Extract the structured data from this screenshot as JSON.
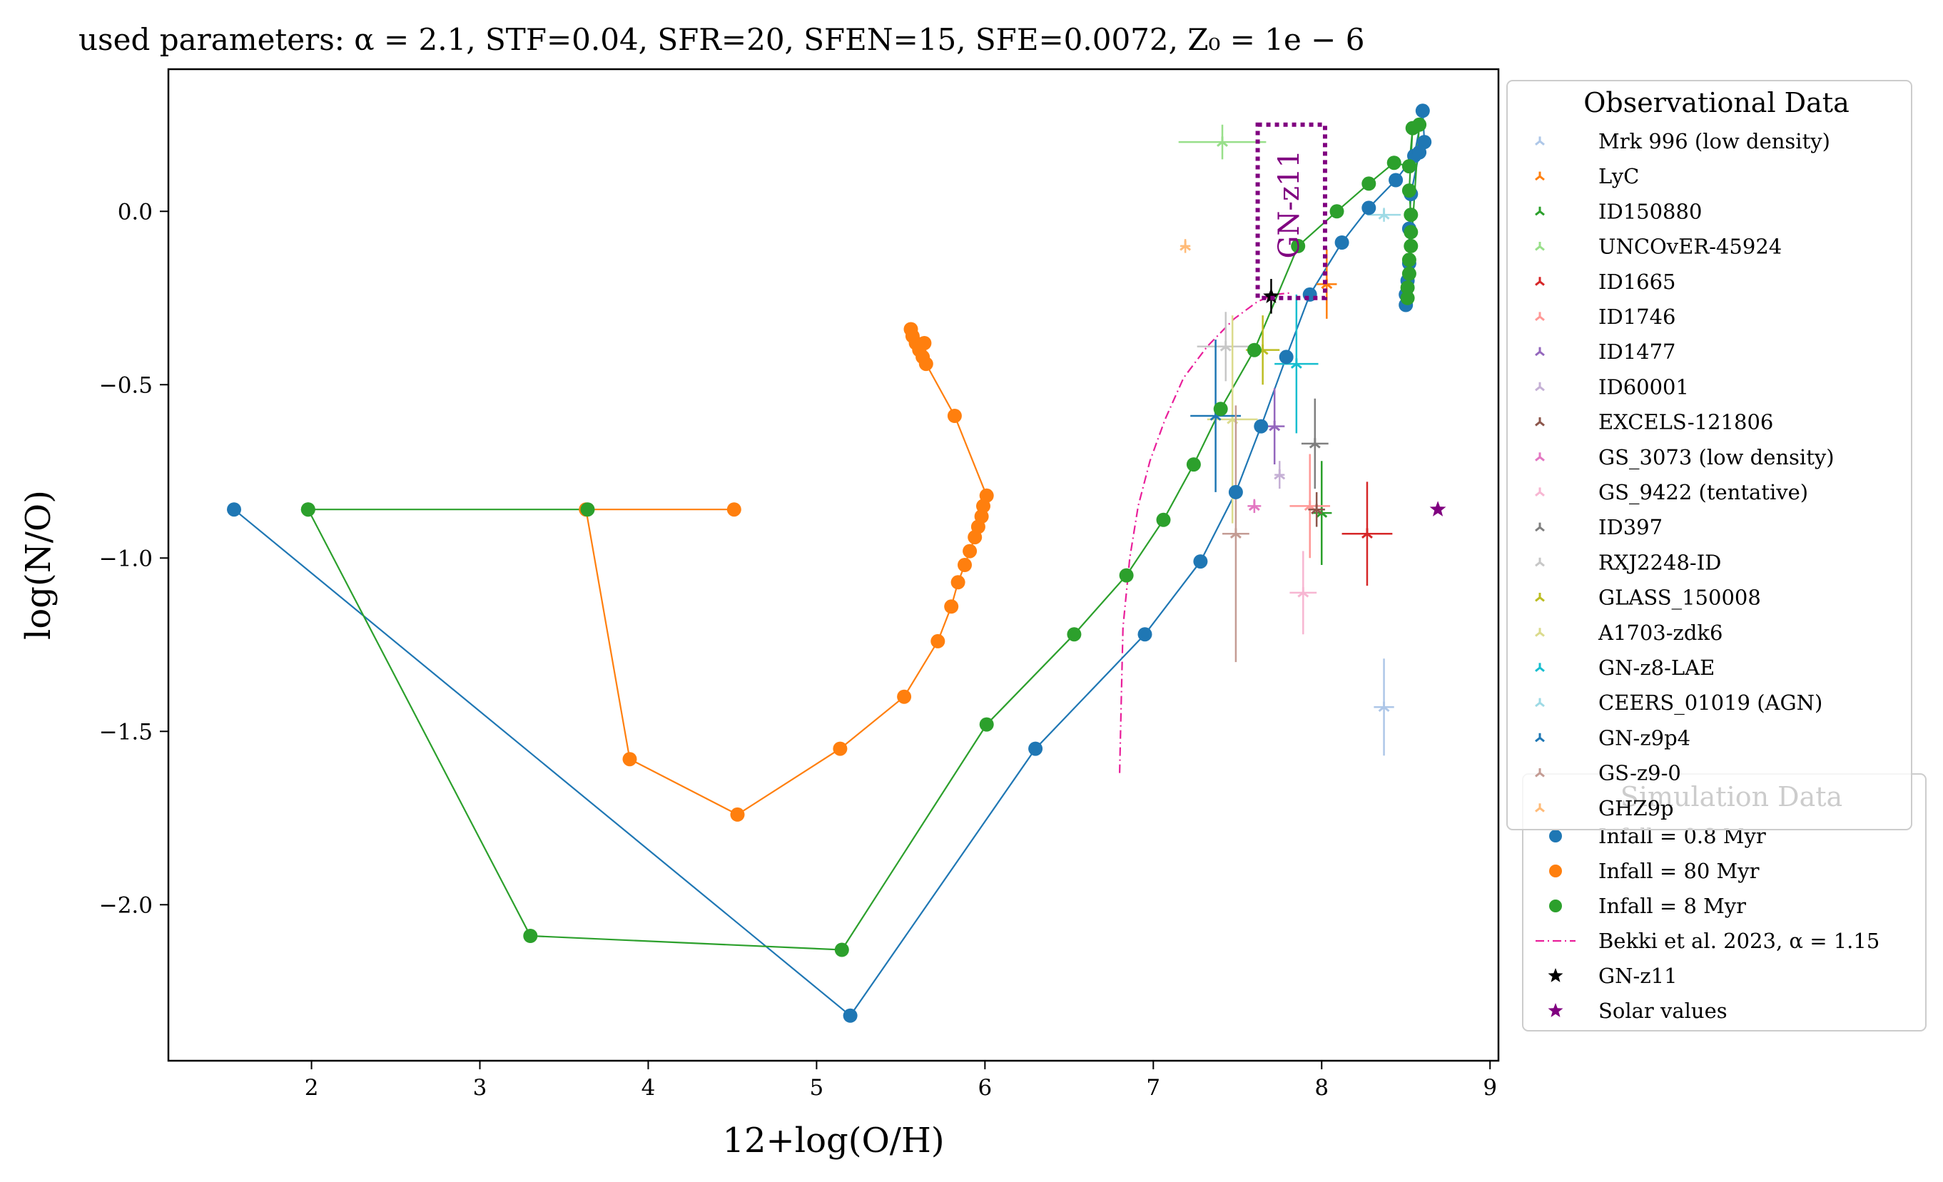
{
  "chart_data": {
    "type": "scatter",
    "title": "used parameters: α = 2.1, STF=0.04, SFR=20, SFEN=15, SFE=0.0072, Z₀ = 1e − 6",
    "xlabel": "12+log(O/H)",
    "ylabel": "log(N/O)",
    "xlim": [
      1.15,
      9.05
    ],
    "ylim": [
      -2.45,
      0.41
    ],
    "xticks": [
      {
        "value": 2,
        "label": "2"
      },
      {
        "value": 3,
        "label": "3"
      },
      {
        "value": 4,
        "label": "4"
      },
      {
        "value": 5,
        "label": "5"
      },
      {
        "value": 6,
        "label": "6"
      },
      {
        "value": 7,
        "label": "7"
      },
      {
        "value": 8,
        "label": "8"
      },
      {
        "value": 9,
        "label": "9"
      }
    ],
    "yticks": [
      {
        "value": 0.0,
        "label": "0.0"
      },
      {
        "value": -0.5,
        "label": "−0.5"
      },
      {
        "value": -1.0,
        "label": "−1.0"
      },
      {
        "value": -1.5,
        "label": "−1.5"
      },
      {
        "value": -2.0,
        "label": "−2.0"
      }
    ],
    "grid": false,
    "simulation_series": [
      {
        "name": "Infall = 0.8 Myr",
        "color": "#1f77b4",
        "points": [
          [
            1.54,
            -0.86
          ],
          [
            5.2,
            -2.32
          ],
          [
            6.3,
            -1.55
          ],
          [
            6.95,
            -1.22
          ],
          [
            7.28,
            -1.01
          ],
          [
            7.49,
            -0.81
          ],
          [
            7.64,
            -0.62
          ],
          [
            7.79,
            -0.42
          ],
          [
            7.93,
            -0.24
          ],
          [
            8.12,
            -0.09
          ],
          [
            8.28,
            0.01
          ],
          [
            8.44,
            0.09
          ],
          [
            8.55,
            0.16
          ],
          [
            8.6,
            0.29
          ],
          [
            8.61,
            0.2
          ],
          [
            8.58,
            0.17
          ],
          [
            8.53,
            0.05
          ],
          [
            8.52,
            -0.05
          ],
          [
            8.52,
            -0.15
          ],
          [
            8.51,
            -0.2
          ],
          [
            8.5,
            -0.24
          ],
          [
            8.5,
            -0.27
          ]
        ]
      },
      {
        "name": "Infall = 80 Myr",
        "color": "#ff7f0e",
        "points": [
          [
            4.51,
            -0.86
          ],
          [
            3.63,
            -0.86
          ],
          [
            3.89,
            -1.58
          ],
          [
            4.53,
            -1.74
          ],
          [
            5.14,
            -1.55
          ],
          [
            5.52,
            -1.4
          ],
          [
            5.72,
            -1.24
          ],
          [
            5.8,
            -1.14
          ],
          [
            5.84,
            -1.07
          ],
          [
            5.88,
            -1.02
          ],
          [
            5.91,
            -0.98
          ],
          [
            5.94,
            -0.94
          ],
          [
            5.96,
            -0.91
          ],
          [
            5.98,
            -0.88
          ],
          [
            5.99,
            -0.85
          ],
          [
            6.01,
            -0.82
          ],
          [
            5.82,
            -0.59
          ],
          [
            5.65,
            -0.44
          ],
          [
            5.63,
            -0.42
          ],
          [
            5.61,
            -0.4
          ],
          [
            5.59,
            -0.38
          ],
          [
            5.57,
            -0.36
          ],
          [
            5.64,
            -0.38
          ],
          [
            5.56,
            -0.34
          ]
        ]
      },
      {
        "name": "Infall = 8 Myr",
        "color": "#2ca02c",
        "points": [
          [
            1.98,
            -0.86
          ],
          [
            3.64,
            -0.86
          ],
          [
            1.98,
            -0.86
          ],
          [
            3.3,
            -2.09
          ],
          [
            5.15,
            -2.13
          ],
          [
            6.01,
            -1.48
          ],
          [
            6.53,
            -1.22
          ],
          [
            6.84,
            -1.05
          ],
          [
            7.06,
            -0.89
          ],
          [
            7.24,
            -0.73
          ],
          [
            7.4,
            -0.57
          ],
          [
            7.6,
            -0.4
          ],
          [
            7.86,
            -0.1
          ],
          [
            8.09,
            0.0
          ],
          [
            8.28,
            0.08
          ],
          [
            8.43,
            0.14
          ],
          [
            8.52,
            0.13
          ],
          [
            8.54,
            0.24
          ],
          [
            8.52,
            0.06
          ],
          [
            8.53,
            -0.01
          ],
          [
            8.53,
            -0.06
          ],
          [
            8.53,
            -0.1
          ],
          [
            8.52,
            -0.14
          ],
          [
            8.52,
            -0.18
          ],
          [
            8.51,
            -0.22
          ],
          [
            8.51,
            -0.25
          ],
          [
            8.58,
            0.25
          ]
        ]
      }
    ],
    "reference_curve": {
      "name": "Bekki et al. 2023, α = 1.15",
      "color": "#e91e9a",
      "points": [
        [
          6.8,
          -1.62
        ],
        [
          6.81,
          -1.4
        ],
        [
          6.82,
          -1.2
        ],
        [
          6.86,
          -1.0
        ],
        [
          6.91,
          -0.85
        ],
        [
          6.98,
          -0.72
        ],
        [
          7.07,
          -0.6
        ],
        [
          7.18,
          -0.48
        ],
        [
          7.32,
          -0.39
        ],
        [
          7.48,
          -0.31
        ],
        [
          7.62,
          -0.26
        ],
        [
          7.72,
          -0.24
        ],
        [
          7.82,
          -0.235
        ]
      ]
    },
    "observations": [
      {
        "name": "Mrk 996 (low density)",
        "color": "#aec7e8",
        "x": 8.37,
        "y": -1.43,
        "xerr": 0.06,
        "yerr": 0.14
      },
      {
        "name": "LyC",
        "color": "#ff7f0e",
        "x": 8.03,
        "y": -0.21,
        "xerr": 0.06,
        "yerr": 0.1
      },
      {
        "name": "ID150880",
        "color": "#2ca02c",
        "x": 8.0,
        "y": -0.87,
        "xerr": 0.06,
        "yerr": 0.15
      },
      {
        "name": "UNCOvER-45924",
        "color": "#98df8a",
        "x": 7.41,
        "y": 0.2,
        "xerr": 0.26,
        "yerr": 0.05
      },
      {
        "name": "ID1665",
        "color": "#d62728",
        "x": 8.27,
        "y": -0.93,
        "xerr": 0.15,
        "yerr": 0.15
      },
      {
        "name": "ID1746",
        "color": "#ff9896",
        "x": 7.93,
        "y": -0.85,
        "xerr": 0.12,
        "yerr": 0.15
      },
      {
        "name": "ID1477",
        "color": "#9467bd",
        "x": 7.72,
        "y": -0.62,
        "xerr": 0.06,
        "yerr": 0.11
      },
      {
        "name": "ID60001",
        "color": "#c5b0d5",
        "x": 7.75,
        "y": -0.76,
        "xerr": 0.03,
        "yerr": 0.04
      },
      {
        "name": "EXCELS-121806",
        "color": "#8c564b",
        "x": 7.97,
        "y": -0.86,
        "xerr": 0.05,
        "yerr": 0.05
      },
      {
        "name": "GS_3073 (low density)",
        "color": "#e377c2",
        "x": 7.6,
        "y": -0.85,
        "xerr": 0.04,
        "yerr": 0.02
      },
      {
        "name": "GS_9422 (tentative)",
        "color": "#f7b6d2",
        "x": 7.89,
        "y": -1.1,
        "xerr": 0.08,
        "yerr": 0.12
      },
      {
        "name": "ID397",
        "color": "#7f7f7f",
        "x": 7.96,
        "y": -0.67,
        "xerr": 0.08,
        "yerr": 0.13
      },
      {
        "name": "RXJ2248-ID",
        "color": "#c7c7c7",
        "x": 7.43,
        "y": -0.39,
        "xerr": 0.17,
        "yerr": 0.1
      },
      {
        "name": "GLASS_150008",
        "color": "#bcbd22",
        "x": 7.65,
        "y": -0.4,
        "xerr": 0.1,
        "yerr": 0.1
      },
      {
        "name": "A1703-zdk6",
        "color": "#dbdb8d",
        "x": 7.47,
        "y": -0.6,
        "xerr": 0.15,
        "yerr": 0.3
      },
      {
        "name": "GN-z8-LAE",
        "color": "#17becf",
        "x": 7.85,
        "y": -0.44,
        "xerr": 0.13,
        "yerr": 0.2
      },
      {
        "name": "CEERS_01019 (AGN)",
        "color": "#9edae5",
        "x": 8.37,
        "y": -0.01,
        "xerr": 0.1,
        "yerr": 0.02
      },
      {
        "name": "GN-z9p4",
        "color": "#1f77b4",
        "x": 7.37,
        "y": -0.59,
        "xerr": 0.15,
        "yerr": 0.22
      },
      {
        "name": "GS-z9-0",
        "color": "#c49c94",
        "x": 7.49,
        "y": -0.93,
        "xerr": 0.08,
        "yerr": 0.37
      },
      {
        "name": "GHZ9p",
        "color": "#ffbb78",
        "x": 7.19,
        "y": -0.1,
        "xerr": 0.03,
        "yerr": 0.02
      }
    ],
    "special_points": [
      {
        "name": "GN-z11",
        "color": "#000000",
        "x": 7.7,
        "y": -0.245,
        "xerr": 0.03,
        "yerr": 0.05
      },
      {
        "name": "Solar values",
        "color": "#800080",
        "x": 8.69,
        "y": -0.86
      }
    ],
    "annotation": {
      "label": "GN-z11",
      "color": "#800080",
      "box_x": [
        7.62,
        8.02
      ],
      "box_y": [
        -0.25,
        0.25
      ]
    },
    "legend_observational": {
      "title": "Observational Data",
      "placement": "upper left, outside plot area"
    },
    "legend_simulation": {
      "title": "Simulation Data",
      "placement": "lower left, outside plot area"
    }
  }
}
